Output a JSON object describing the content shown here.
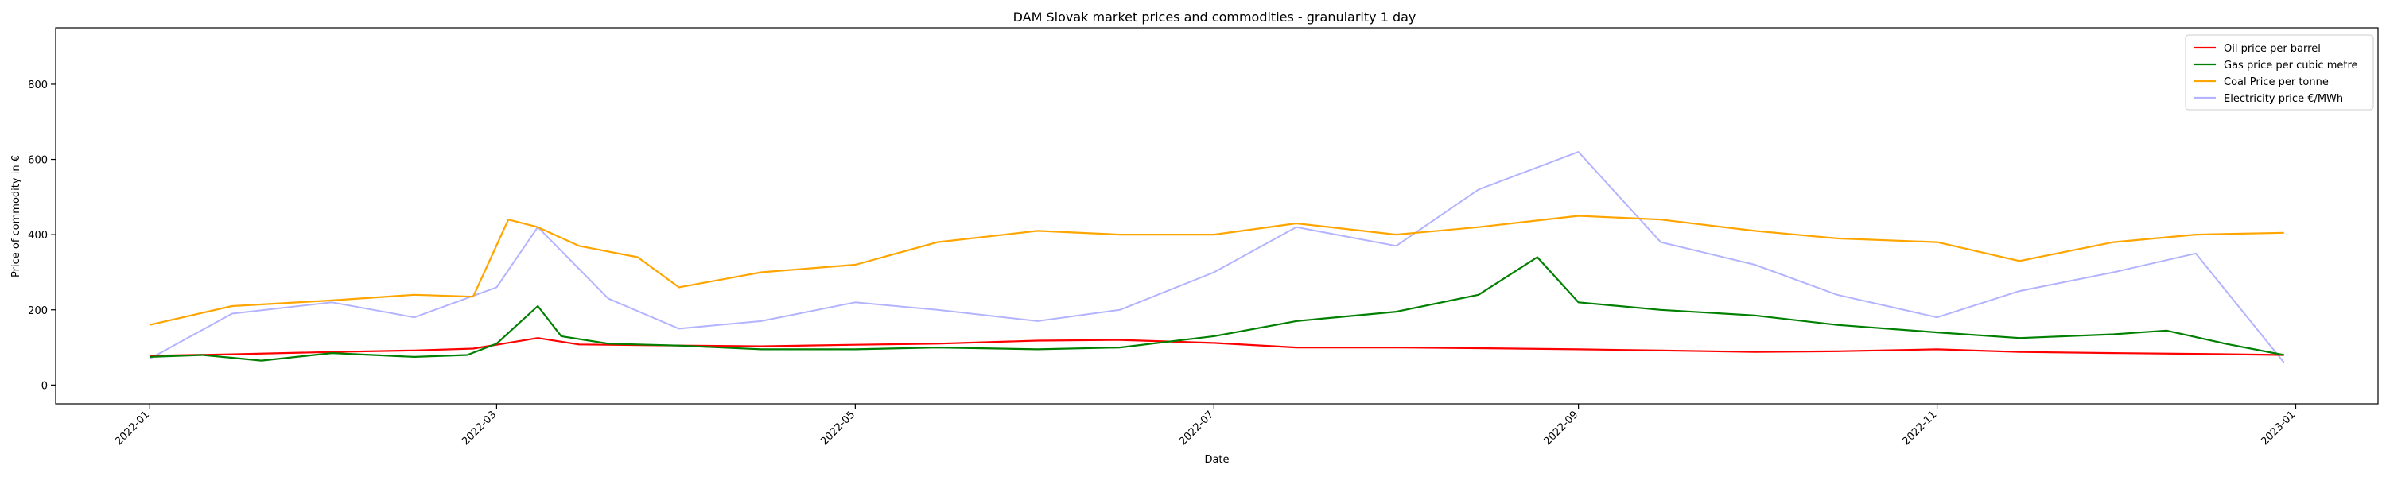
{
  "chart_data": {
    "type": "line",
    "title": "DAM Slovak market prices and commodities - granularity 1 day",
    "xlabel": "Date",
    "ylabel": "Price of commodity in €",
    "xlim": [
      "2021-12-16",
      "2023-01-15"
    ],
    "ylim": [
      -50,
      950
    ],
    "grid": false,
    "legend_position": "top-right",
    "x_ticks": [
      "2022-01",
      "2022-03",
      "2022-05",
      "2022-07",
      "2022-09",
      "2022-11",
      "2023-01"
    ],
    "y_ticks": [
      0,
      200,
      400,
      600,
      800
    ],
    "series": [
      {
        "name": "Oil price per barrel",
        "color": "#ff0000",
        "x": [
          "2022-01-01",
          "2022-01-15",
          "2022-02-01",
          "2022-02-15",
          "2022-02-25",
          "2022-03-08",
          "2022-03-15",
          "2022-04-01",
          "2022-04-15",
          "2022-05-01",
          "2022-05-15",
          "2022-06-01",
          "2022-06-15",
          "2022-07-01",
          "2022-07-15",
          "2022-08-01",
          "2022-08-15",
          "2022-09-01",
          "2022-09-15",
          "2022-10-01",
          "2022-10-15",
          "2022-11-01",
          "2022-11-15",
          "2022-12-01",
          "2022-12-15",
          "2022-12-30"
        ],
        "values": [
          78,
          82,
          88,
          92,
          97,
          125,
          108,
          105,
          103,
          107,
          110,
          118,
          120,
          112,
          100,
          100,
          98,
          95,
          92,
          88,
          90,
          95,
          88,
          85,
          83,
          80
        ]
      },
      {
        "name": "Gas price per cubic metre",
        "color": "#008000",
        "x": [
          "2022-01-01",
          "2022-01-10",
          "2022-01-20",
          "2022-02-01",
          "2022-02-15",
          "2022-02-24",
          "2022-03-01",
          "2022-03-08",
          "2022-03-12",
          "2022-03-20",
          "2022-04-01",
          "2022-04-15",
          "2022-05-01",
          "2022-05-15",
          "2022-06-01",
          "2022-06-15",
          "2022-07-01",
          "2022-07-15",
          "2022-08-01",
          "2022-08-15",
          "2022-08-25",
          "2022-09-01",
          "2022-09-15",
          "2022-10-01",
          "2022-10-15",
          "2022-11-01",
          "2022-11-15",
          "2022-12-01",
          "2022-12-10",
          "2022-12-20",
          "2022-12-30"
        ],
        "values": [
          75,
          80,
          65,
          85,
          75,
          80,
          110,
          210,
          130,
          110,
          105,
          95,
          95,
          100,
          95,
          100,
          130,
          170,
          195,
          240,
          340,
          220,
          200,
          185,
          160,
          140,
          125,
          135,
          145,
          110,
          80
        ]
      },
      {
        "name": "Coal Price per tonne",
        "color": "#ffa500",
        "x": [
          "2022-01-01",
          "2022-01-15",
          "2022-02-01",
          "2022-02-15",
          "2022-02-25",
          "2022-03-03",
          "2022-03-08",
          "2022-03-15",
          "2022-03-25",
          "2022-04-01",
          "2022-04-15",
          "2022-05-01",
          "2022-05-15",
          "2022-06-01",
          "2022-06-15",
          "2022-07-01",
          "2022-07-15",
          "2022-08-01",
          "2022-08-15",
          "2022-09-01",
          "2022-09-15",
          "2022-10-01",
          "2022-10-15",
          "2022-11-01",
          "2022-11-15",
          "2022-12-01",
          "2022-12-15",
          "2022-12-30"
        ],
        "values": [
          160,
          210,
          225,
          240,
          235,
          440,
          420,
          370,
          340,
          260,
          300,
          320,
          380,
          410,
          400,
          400,
          430,
          400,
          420,
          450,
          440,
          410,
          390,
          380,
          330,
          380,
          400,
          405
        ]
      },
      {
        "name": "Electricity price €/MWh",
        "color": "#b3b3ff",
        "x": [
          "2022-01-01",
          "2022-01-15",
          "2022-02-01",
          "2022-02-15",
          "2022-03-01",
          "2022-03-08",
          "2022-03-20",
          "2022-04-01",
          "2022-04-15",
          "2022-05-01",
          "2022-05-15",
          "2022-06-01",
          "2022-06-15",
          "2022-07-01",
          "2022-07-15",
          "2022-08-01",
          "2022-08-15",
          "2022-09-01",
          "2022-09-15",
          "2022-10-01",
          "2022-10-15",
          "2022-11-01",
          "2022-11-15",
          "2022-12-01",
          "2022-12-15",
          "2022-12-30"
        ],
        "values": [
          70,
          190,
          220,
          180,
          260,
          420,
          230,
          150,
          170,
          220,
          200,
          170,
          200,
          300,
          420,
          370,
          520,
          620,
          380,
          320,
          240,
          180,
          250,
          300,
          350,
          60
        ]
      }
    ]
  }
}
